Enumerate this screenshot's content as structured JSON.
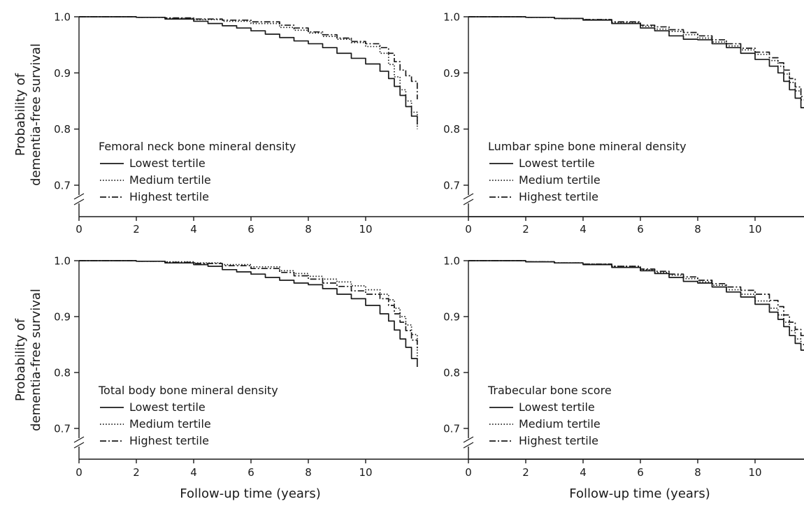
{
  "chart_data": [
    {
      "type": "line",
      "legend_title": "Femoral neck bone mineral density",
      "xlabel": "",
      "ylabel": "Probability of dementia-free survival",
      "xlim": [
        0,
        11.8
      ],
      "ylim": [
        0.67,
        1.0
      ],
      "x_ticks": [
        "0",
        "2",
        "4",
        "6",
        "8",
        "10"
      ],
      "y_ticks": [
        "1.0",
        "0.9",
        "0.8",
        "0.7"
      ],
      "legend_position": "bottom-left",
      "axis_break": true,
      "series": [
        {
          "name": "Lowest tertile",
          "style": "solid",
          "x": [
            0,
            1,
            2,
            3,
            4,
            4.5,
            5,
            5.5,
            6,
            6.5,
            7,
            7.5,
            8,
            8.5,
            9,
            9.5,
            10,
            10.5,
            10.8,
            11,
            11.2,
            11.4,
            11.6,
            11.8
          ],
          "y": [
            1.0,
            1.0,
            0.999,
            0.996,
            0.992,
            0.988,
            0.984,
            0.98,
            0.975,
            0.969,
            0.963,
            0.957,
            0.952,
            0.945,
            0.935,
            0.926,
            0.916,
            0.903,
            0.89,
            0.876,
            0.86,
            0.84,
            0.823,
            0.808
          ]
        },
        {
          "name": "Medium tertile",
          "style": "dotted",
          "x": [
            0,
            1,
            2,
            3,
            4,
            5,
            6,
            7,
            7.5,
            8,
            8.5,
            9,
            9.5,
            10,
            10.5,
            10.8,
            11,
            11.2,
            11.4,
            11.6,
            11.8
          ],
          "y": [
            1.0,
            1.0,
            0.999,
            0.997,
            0.995,
            0.992,
            0.988,
            0.981,
            0.976,
            0.971,
            0.965,
            0.96,
            0.954,
            0.947,
            0.935,
            0.915,
            0.893,
            0.87,
            0.85,
            0.83,
            0.8
          ]
        },
        {
          "name": "Highest tertile",
          "style": "dashdot",
          "x": [
            0,
            1,
            2,
            3,
            4,
            5,
            6,
            7,
            7.5,
            8,
            8.5,
            9,
            9.5,
            10,
            10.5,
            10.8,
            11,
            11.2,
            11.4,
            11.6,
            11.8
          ],
          "y": [
            1.0,
            1.0,
            0.999,
            0.998,
            0.996,
            0.994,
            0.991,
            0.985,
            0.98,
            0.973,
            0.968,
            0.962,
            0.956,
            0.952,
            0.945,
            0.935,
            0.92,
            0.905,
            0.895,
            0.885,
            0.853
          ]
        }
      ]
    },
    {
      "type": "line",
      "legend_title": "Lumbar spine bone mineral density",
      "xlabel": "",
      "ylabel": "",
      "xlim": [
        0,
        11.8
      ],
      "ylim": [
        0.67,
        1.0
      ],
      "x_ticks": [
        "0",
        "2",
        "4",
        "6",
        "8",
        "10"
      ],
      "y_ticks": [
        "1.0",
        "0.9",
        "0.8",
        "0.7"
      ],
      "legend_position": "bottom-left",
      "axis_break": true,
      "series": [
        {
          "name": "Lowest tertile",
          "style": "solid",
          "x": [
            0,
            1,
            2,
            3,
            4,
            5,
            6,
            6.5,
            7,
            7.5,
            8,
            8.5,
            9,
            9.5,
            10,
            10.5,
            10.8,
            11,
            11.2,
            11.4,
            11.6,
            11.8
          ],
          "y": [
            1.0,
            1.0,
            0.999,
            0.997,
            0.994,
            0.988,
            0.98,
            0.975,
            0.966,
            0.96,
            0.959,
            0.952,
            0.945,
            0.935,
            0.924,
            0.912,
            0.9,
            0.885,
            0.87,
            0.855,
            0.838,
            0.825
          ]
        },
        {
          "name": "Medium tertile",
          "style": "dotted",
          "x": [
            0,
            1,
            2,
            3,
            4,
            5,
            6,
            6.5,
            7,
            7.5,
            8,
            8.5,
            9,
            9.5,
            10,
            10.5,
            10.8,
            11,
            11.2,
            11.4,
            11.6,
            11.8
          ],
          "y": [
            1.0,
            1.0,
            0.999,
            0.997,
            0.995,
            0.99,
            0.983,
            0.978,
            0.974,
            0.968,
            0.962,
            0.955,
            0.948,
            0.941,
            0.933,
            0.922,
            0.912,
            0.898,
            0.883,
            0.868,
            0.852,
            0.838
          ]
        },
        {
          "name": "Highest tertile",
          "style": "dashdot",
          "x": [
            0,
            1,
            2,
            3,
            4,
            5,
            6,
            6.5,
            7,
            7.5,
            8,
            8.5,
            9,
            9.5,
            10,
            10.5,
            10.8,
            11,
            11.2,
            11.4,
            11.6,
            11.8
          ],
          "y": [
            1.0,
            1.0,
            0.999,
            0.997,
            0.995,
            0.991,
            0.985,
            0.982,
            0.977,
            0.972,
            0.966,
            0.959,
            0.952,
            0.944,
            0.937,
            0.927,
            0.918,
            0.905,
            0.89,
            0.875,
            0.858,
            0.842
          ]
        }
      ]
    },
    {
      "type": "line",
      "legend_title": "Total body bone mineral density",
      "xlabel": "Follow-up time (years)",
      "ylabel": "Probability of dementia-free survival",
      "xlim": [
        0,
        11.8
      ],
      "ylim": [
        0.67,
        1.0
      ],
      "x_ticks": [
        "0",
        "2",
        "4",
        "6",
        "8",
        "10"
      ],
      "y_ticks": [
        "1.0",
        "0.9",
        "0.8",
        "0.7"
      ],
      "legend_position": "bottom-left",
      "axis_break": true,
      "series": [
        {
          "name": "Lowest tertile",
          "style": "solid",
          "x": [
            0,
            1,
            2,
            3,
            4,
            4.5,
            5,
            5.5,
            6,
            6.5,
            7,
            7.5,
            8,
            8.5,
            9,
            9.5,
            10,
            10.5,
            10.8,
            11,
            11.2,
            11.4,
            11.6,
            11.8
          ],
          "y": [
            1.0,
            1.0,
            0.999,
            0.996,
            0.993,
            0.99,
            0.984,
            0.98,
            0.976,
            0.97,
            0.965,
            0.96,
            0.957,
            0.95,
            0.94,
            0.932,
            0.92,
            0.905,
            0.892,
            0.876,
            0.86,
            0.845,
            0.825,
            0.81
          ]
        },
        {
          "name": "Medium tertile",
          "style": "dotted",
          "x": [
            0,
            1,
            2,
            3,
            4,
            5,
            6,
            7,
            7.5,
            8,
            8.5,
            9,
            9.5,
            10,
            10.5,
            10.8,
            11,
            11.2,
            11.4,
            11.6,
            11.8
          ],
          "y": [
            1.0,
            1.0,
            0.999,
            0.998,
            0.996,
            0.993,
            0.989,
            0.982,
            0.977,
            0.972,
            0.967,
            0.962,
            0.955,
            0.948,
            0.94,
            0.93,
            0.915,
            0.9,
            0.885,
            0.868,
            0.822
          ]
        },
        {
          "name": "Highest tertile",
          "style": "dashdot",
          "x": [
            0,
            1,
            2,
            3,
            4,
            5,
            6,
            7,
            7.5,
            8,
            8.5,
            9,
            9.5,
            10,
            10.5,
            10.8,
            11,
            11.2,
            11.4,
            11.6,
            11.8
          ],
          "y": [
            1.0,
            1.0,
            0.999,
            0.997,
            0.995,
            0.991,
            0.986,
            0.979,
            0.973,
            0.967,
            0.96,
            0.954,
            0.946,
            0.94,
            0.932,
            0.92,
            0.905,
            0.89,
            0.875,
            0.858,
            0.842
          ]
        }
      ]
    },
    {
      "type": "line",
      "legend_title": "Trabecular bone score",
      "xlabel": "Follow-up time (years)",
      "ylabel": "",
      "xlim": [
        0,
        11.8
      ],
      "ylim": [
        0.67,
        1.0
      ],
      "x_ticks": [
        "0",
        "2",
        "4",
        "6",
        "8",
        "10"
      ],
      "y_ticks": [
        "1.0",
        "0.9",
        "0.8",
        "0.7"
      ],
      "legend_position": "bottom-left",
      "axis_break": true,
      "series": [
        {
          "name": "Lowest tertile",
          "style": "solid",
          "x": [
            0,
            1,
            2,
            3,
            4,
            5,
            6,
            6.5,
            7,
            7.5,
            8,
            8.5,
            9,
            9.5,
            10,
            10.5,
            10.8,
            11,
            11.2,
            11.4,
            11.6,
            11.8
          ],
          "y": [
            1.0,
            1.0,
            0.998,
            0.996,
            0.993,
            0.988,
            0.982,
            0.977,
            0.97,
            0.963,
            0.96,
            0.953,
            0.944,
            0.935,
            0.922,
            0.908,
            0.895,
            0.882,
            0.866,
            0.852,
            0.84,
            0.83
          ]
        },
        {
          "name": "Medium tertile",
          "style": "dotted",
          "x": [
            0,
            1,
            2,
            3,
            4,
            5,
            6,
            6.5,
            7,
            7.5,
            8,
            8.5,
            9,
            9.5,
            10,
            10.5,
            10.8,
            11,
            11.2,
            11.4,
            11.6,
            11.8
          ],
          "y": [
            1.0,
            1.0,
            0.998,
            0.996,
            0.994,
            0.99,
            0.984,
            0.979,
            0.974,
            0.968,
            0.962,
            0.956,
            0.948,
            0.94,
            0.928,
            0.915,
            0.903,
            0.89,
            0.875,
            0.86,
            0.85,
            0.838
          ]
        },
        {
          "name": "Highest tertile",
          "style": "dashdot",
          "x": [
            0,
            1,
            2,
            3,
            4,
            5,
            6,
            6.5,
            7,
            7.5,
            8,
            8.5,
            9,
            9.5,
            10,
            10.5,
            10.8,
            11,
            11.2,
            11.4,
            11.6,
            11.8
          ],
          "y": [
            1.0,
            1.0,
            0.998,
            0.996,
            0.994,
            0.99,
            0.985,
            0.981,
            0.976,
            0.971,
            0.965,
            0.959,
            0.953,
            0.947,
            0.94,
            0.929,
            0.918,
            0.903,
            0.89,
            0.877,
            0.866,
            0.855
          ]
        }
      ]
    }
  ]
}
